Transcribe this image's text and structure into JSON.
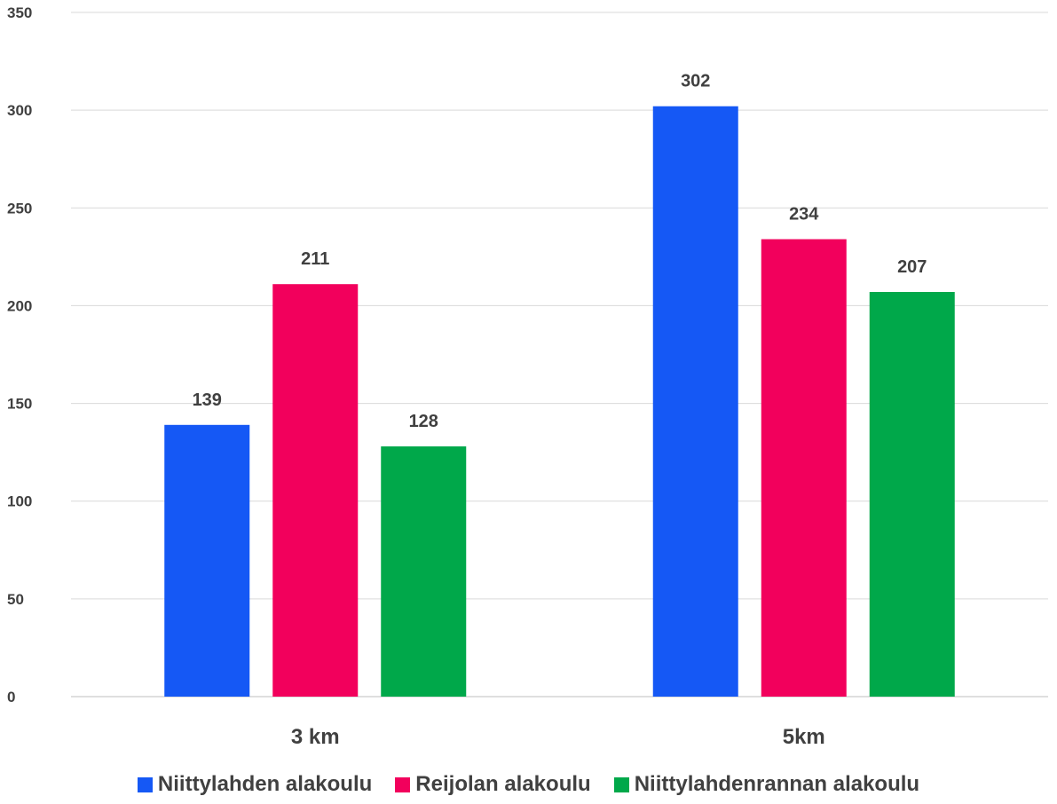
{
  "chart_data": {
    "type": "bar",
    "categories": [
      "3 km",
      "5km"
    ],
    "series": [
      {
        "name": "Niittylahden alakoulu",
        "values": [
          139,
          302
        ],
        "color": "#1558F5"
      },
      {
        "name": "Reijolan alakoulu",
        "values": [
          211,
          234
        ],
        "color": "#F2005C"
      },
      {
        "name": "Niittylahdenrannan alakoulu",
        "values": [
          128,
          207
        ],
        "color": "#00A84A"
      }
    ],
    "yticks": [
      "0",
      "50",
      "100",
      "150",
      "200",
      "250",
      "300",
      "350"
    ],
    "ylim": [
      0,
      350
    ],
    "grid": true,
    "legend_position": "bottom",
    "title": "",
    "xlabel": "",
    "ylabel": ""
  }
}
